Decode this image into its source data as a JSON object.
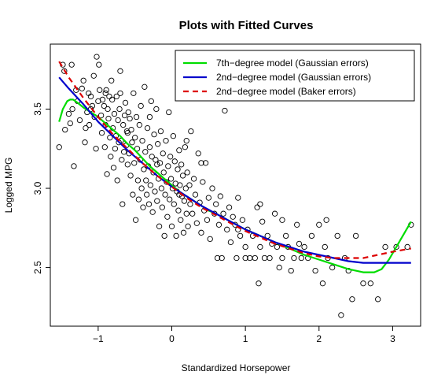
{
  "chart_data": {
    "type": "scatter",
    "title": "Plots with Fitted Curves",
    "xlabel": "Standardized Horsepower",
    "ylabel": "Logged MPG",
    "xlim": [
      -1.65,
      3.38
    ],
    "ylim": [
      2.13,
      3.91
    ],
    "x_ticks": [
      -1,
      0,
      1,
      2,
      3
    ],
    "y_ticks": [
      2.5,
      3.0,
      3.5
    ],
    "legend_position": "top-right",
    "points": [
      [
        -1.53,
        3.26
      ],
      [
        -1.48,
        3.78
      ],
      [
        -1.46,
        3.74
      ],
      [
        -1.45,
        3.37
      ],
      [
        -1.4,
        3.47
      ],
      [
        -1.38,
        3.41
      ],
      [
        -1.36,
        3.78
      ],
      [
        -1.35,
        3.5
      ],
      [
        -1.33,
        3.14
      ],
      [
        -1.3,
        3.62
      ],
      [
        -1.28,
        3.55
      ],
      [
        -1.25,
        3.43
      ],
      [
        -1.22,
        3.63
      ],
      [
        -1.2,
        3.68
      ],
      [
        -1.18,
        3.29
      ],
      [
        -1.17,
        3.38
      ],
      [
        -1.15,
        3.48
      ],
      [
        -1.13,
        3.6
      ],
      [
        -1.12,
        3.4
      ],
      [
        -1.1,
        3.58
      ],
      [
        -1.08,
        3.52
      ],
      [
        -1.06,
        3.71
      ],
      [
        -1.05,
        3.45
      ],
      [
        -1.03,
        3.25
      ],
      [
        -1.02,
        3.83
      ],
      [
        -1.0,
        3.55
      ],
      [
        -0.99,
        3.78
      ],
      [
        -0.98,
        3.62
      ],
      [
        -0.96,
        3.46
      ],
      [
        -0.95,
        3.35
      ],
      [
        -0.94,
        3.56
      ],
      [
        -0.92,
        3.52
      ],
      [
        -0.91,
        3.26
      ],
      [
        -0.9,
        3.4
      ],
      [
        -0.89,
        3.62
      ],
      [
        -0.88,
        3.09
      ],
      [
        -0.87,
        3.5
      ],
      [
        -0.86,
        3.44
      ],
      [
        -0.85,
        3.58
      ],
      [
        -0.84,
        3.32
      ],
      [
        -0.83,
        3.2
      ],
      [
        -0.82,
        3.68
      ],
      [
        -0.81,
        3.56
      ],
      [
        -0.8,
        3.38
      ],
      [
        -0.79,
        3.13
      ],
      [
        -0.78,
        3.47
      ],
      [
        -0.77,
        3.25
      ],
      [
        -0.76,
        3.33
      ],
      [
        -0.75,
        3.58
      ],
      [
        -0.74,
        3.05
      ],
      [
        -0.73,
        3.43
      ],
      [
        -0.72,
        3.29
      ],
      [
        -0.71,
        3.5
      ],
      [
        -0.7,
        3.74
      ],
      [
        -0.69,
        3.3
      ],
      [
        -0.68,
        3.18
      ],
      [
        -0.67,
        2.9
      ],
      [
        -0.66,
        3.4
      ],
      [
        -0.65,
        3.23
      ],
      [
        -0.64,
        3.46
      ],
      [
        -0.63,
        3.54
      ],
      [
        -0.62,
        3.27
      ],
      [
        -0.61,
        3.36
      ],
      [
        -0.6,
        3.15
      ],
      [
        -0.59,
        3.48
      ],
      [
        -0.58,
        3.22
      ],
      [
        -0.57,
        3.44
      ],
      [
        -0.56,
        3.08
      ],
      [
        -0.55,
        3.37
      ],
      [
        -0.54,
        3.29
      ],
      [
        -0.53,
        2.96
      ],
      [
        -0.52,
        3.6
      ],
      [
        -0.51,
        3.16
      ],
      [
        -0.5,
        3.32
      ],
      [
        -0.49,
        2.8
      ],
      [
        -0.48,
        3.45
      ],
      [
        -0.47,
        3.25
      ],
      [
        -0.46,
        3.05
      ],
      [
        -0.45,
        2.93
      ],
      [
        -0.44,
        3.4
      ],
      [
        -0.43,
        3.18
      ],
      [
        -0.42,
        3.52
      ],
      [
        -0.41,
        3.0
      ],
      [
        -0.4,
        3.3
      ],
      [
        -0.39,
        2.88
      ],
      [
        -0.38,
        3.12
      ],
      [
        -0.37,
        3.64
      ],
      [
        -0.36,
        3.23
      ],
      [
        -0.35,
        3.05
      ],
      [
        -0.34,
        2.96
      ],
      [
        -0.33,
        3.38
      ],
      [
        -0.32,
        3.14
      ],
      [
        -0.31,
        2.9
      ],
      [
        -0.3,
        3.26
      ],
      [
        -0.29,
        3.02
      ],
      [
        -0.28,
        3.55
      ],
      [
        -0.27,
        3.2
      ],
      [
        -0.26,
        2.85
      ],
      [
        -0.25,
        3.1
      ],
      [
        -0.24,
        3.34
      ],
      [
        -0.23,
        2.98
      ],
      [
        -0.22,
        3.18
      ],
      [
        -0.21,
        3.5
      ],
      [
        -0.2,
        2.92
      ],
      [
        -0.19,
        3.28
      ],
      [
        -0.18,
        3.06
      ],
      [
        -0.17,
        2.76
      ],
      [
        -0.16,
        3.16
      ],
      [
        -0.15,
        3.36
      ],
      [
        -0.14,
        3.0
      ],
      [
        -0.13,
        2.88
      ],
      [
        -0.12,
        3.22
      ],
      [
        -0.11,
        3.1
      ],
      [
        -0.1,
        2.7
      ],
      [
        -0.09,
        2.96
      ],
      [
        -0.08,
        3.3
      ],
      [
        -0.07,
        3.04
      ],
      [
        -0.06,
        2.82
      ],
      [
        -0.05,
        3.14
      ],
      [
        -0.04,
        3.48
      ],
      [
        -0.03,
        2.93
      ],
      [
        -0.02,
        3.2
      ],
      [
        -0.01,
        3.06
      ],
      [
        0.0,
        2.76
      ],
      [
        0.01,
        3.0
      ],
      [
        0.02,
        3.33
      ],
      [
        0.03,
        2.9
      ],
      [
        0.04,
        3.17
      ],
      [
        0.05,
        3.03
      ],
      [
        0.06,
        2.7
      ],
      [
        0.07,
        2.98
      ],
      [
        0.08,
        3.12
      ],
      [
        0.09,
        2.86
      ],
      [
        0.1,
        3.24
      ],
      [
        0.11,
        3.02
      ],
      [
        0.12,
        2.8
      ],
      [
        0.13,
        3.15
      ],
      [
        0.14,
        2.95
      ],
      [
        0.15,
        3.08
      ],
      [
        0.16,
        2.72
      ],
      [
        0.17,
        2.92
      ],
      [
        0.18,
        3.26
      ],
      [
        0.19,
        3.0
      ],
      [
        0.2,
        2.84
      ],
      [
        0.21,
        3.1
      ],
      [
        0.22,
        2.76
      ],
      [
        0.24,
        3.02
      ],
      [
        0.25,
        2.9
      ],
      [
        0.26,
        3.36
      ],
      [
        0.28,
        2.84
      ],
      [
        0.3,
        3.06
      ],
      [
        0.32,
        2.96
      ],
      [
        0.34,
        2.78
      ],
      [
        0.36,
        3.22
      ],
      [
        0.38,
        2.91
      ],
      [
        0.4,
        2.72
      ],
      [
        0.42,
        3.04
      ],
      [
        0.44,
        2.86
      ],
      [
        0.46,
        3.16
      ],
      [
        0.48,
        2.8
      ],
      [
        0.5,
        2.94
      ],
      [
        0.52,
        2.68
      ],
      [
        0.55,
        3.0
      ],
      [
        0.58,
        2.84
      ],
      [
        0.6,
        2.9
      ],
      [
        0.62,
        2.56
      ],
      [
        0.64,
        2.77
      ],
      [
        0.66,
        2.95
      ],
      [
        0.68,
        2.56
      ],
      [
        0.7,
        2.84
      ],
      [
        0.72,
        3.49
      ],
      [
        0.75,
        2.74
      ],
      [
        0.78,
        2.88
      ],
      [
        0.8,
        2.66
      ],
      [
        0.83,
        2.82
      ],
      [
        0.86,
        2.77
      ],
      [
        0.88,
        2.56
      ],
      [
        0.9,
        2.94
      ],
      [
        0.93,
        2.7
      ],
      [
        0.96,
        2.8
      ],
      [
        1.0,
        2.63
      ],
      [
        1.03,
        2.74
      ],
      [
        1.06,
        2.56
      ],
      [
        1.1,
        2.7
      ],
      [
        1.13,
        2.56
      ],
      [
        1.16,
        2.88
      ],
      [
        1.18,
        2.4
      ],
      [
        1.2,
        2.63
      ],
      [
        1.23,
        2.79
      ],
      [
        1.26,
        2.56
      ],
      [
        1.3,
        2.7
      ],
      [
        1.33,
        2.56
      ],
      [
        1.36,
        2.65
      ],
      [
        1.4,
        2.84
      ],
      [
        1.43,
        2.63
      ],
      [
        1.46,
        2.5
      ],
      [
        1.5,
        2.56
      ],
      [
        1.55,
        2.7
      ],
      [
        1.58,
        2.63
      ],
      [
        1.62,
        2.48
      ],
      [
        1.66,
        2.56
      ],
      [
        1.7,
        2.77
      ],
      [
        1.73,
        2.65
      ],
      [
        1.76,
        2.56
      ],
      [
        1.8,
        2.63
      ],
      [
        1.85,
        2.56
      ],
      [
        1.9,
        2.7
      ],
      [
        1.95,
        2.48
      ],
      [
        2.0,
        2.77
      ],
      [
        2.05,
        2.4
      ],
      [
        2.08,
        2.63
      ],
      [
        2.12,
        2.56
      ],
      [
        2.18,
        2.5
      ],
      [
        2.25,
        2.7
      ],
      [
        2.3,
        2.2
      ],
      [
        2.35,
        2.56
      ],
      [
        2.4,
        2.48
      ],
      [
        2.45,
        2.3
      ],
      [
        2.5,
        2.7
      ],
      [
        2.6,
        2.4
      ],
      [
        2.7,
        2.4
      ],
      [
        2.8,
        2.3
      ],
      [
        2.9,
        2.63
      ],
      [
        3.05,
        2.63
      ],
      [
        3.2,
        2.63
      ],
      [
        3.25,
        2.77
      ],
      [
        2.1,
        2.8
      ],
      [
        1.0,
        2.56
      ],
      [
        0.2,
        3.3
      ],
      [
        -0.3,
        3.45
      ],
      [
        -0.7,
        3.6
      ],
      [
        -1.1,
        3.5
      ],
      [
        -0.9,
        3.6
      ],
      [
        -0.6,
        3.35
      ],
      [
        -0.2,
        3.15
      ],
      [
        0.1,
        2.96
      ],
      [
        0.4,
        3.16
      ],
      [
        0.9,
        2.74
      ],
      [
        1.2,
        2.9
      ],
      [
        1.5,
        2.8
      ]
    ],
    "series": [
      {
        "name": "7th−degree model (Gaussian errors)",
        "color": "#00dd00",
        "dash": "solid",
        "x": [
          -1.53,
          -1.48,
          -1.42,
          -1.38,
          -1.34,
          -1.28,
          -1.2,
          -1.1,
          -1.0,
          -0.9,
          -0.8,
          -0.7,
          -0.6,
          -0.5,
          -0.4,
          -0.3,
          -0.2,
          -0.1,
          0.0,
          0.1,
          0.2,
          0.3,
          0.4,
          0.5,
          0.6,
          0.8,
          1.0,
          1.2,
          1.4,
          1.6,
          1.8,
          2.0,
          2.2,
          2.4,
          2.6,
          2.75,
          2.85,
          2.95,
          3.05,
          3.15,
          3.25
        ],
        "y": [
          3.42,
          3.5,
          3.55,
          3.56,
          3.56,
          3.54,
          3.51,
          3.48,
          3.45,
          3.41,
          3.37,
          3.33,
          3.28,
          3.24,
          3.19,
          3.14,
          3.1,
          3.06,
          3.02,
          2.98,
          2.95,
          2.92,
          2.89,
          2.86,
          2.84,
          2.79,
          2.74,
          2.7,
          2.66,
          2.62,
          2.58,
          2.55,
          2.52,
          2.49,
          2.47,
          2.47,
          2.49,
          2.55,
          2.63,
          2.71,
          2.79
        ]
      },
      {
        "name": "2nd−degree model (Gaussian errors)",
        "color": "#0000cc",
        "dash": "solid",
        "x": [
          -1.53,
          -1.4,
          -1.2,
          -1.0,
          -0.8,
          -0.6,
          -0.4,
          -0.2,
          0.0,
          0.2,
          0.4,
          0.6,
          0.8,
          1.0,
          1.2,
          1.4,
          1.6,
          1.8,
          2.0,
          2.2,
          2.4,
          2.6,
          2.8,
          3.0,
          3.25
        ],
        "y": [
          3.7,
          3.63,
          3.53,
          3.42,
          3.33,
          3.24,
          3.16,
          3.08,
          3.01,
          2.95,
          2.89,
          2.84,
          2.79,
          2.74,
          2.7,
          2.66,
          2.63,
          2.6,
          2.58,
          2.56,
          2.54,
          2.53,
          2.53,
          2.53,
          2.53
        ]
      },
      {
        "name": "2nd−degree model (Baker errors)",
        "color": "#dd0000",
        "dash": "dashed",
        "x": [
          -1.53,
          -1.4,
          -1.2,
          -1.0,
          -0.8,
          -0.6,
          -0.4,
          -0.2,
          0.0,
          0.2,
          0.4,
          0.6,
          0.8,
          1.0,
          1.2,
          1.4,
          1.6,
          1.8,
          2.0,
          2.2,
          2.4,
          2.6,
          2.8,
          3.0,
          3.25
        ],
        "y": [
          3.8,
          3.7,
          3.57,
          3.45,
          3.34,
          3.25,
          3.16,
          3.08,
          3.01,
          2.94,
          2.88,
          2.83,
          2.78,
          2.73,
          2.69,
          2.65,
          2.62,
          2.59,
          2.57,
          2.56,
          2.56,
          2.56,
          2.58,
          2.6,
          2.62
        ]
      }
    ]
  }
}
